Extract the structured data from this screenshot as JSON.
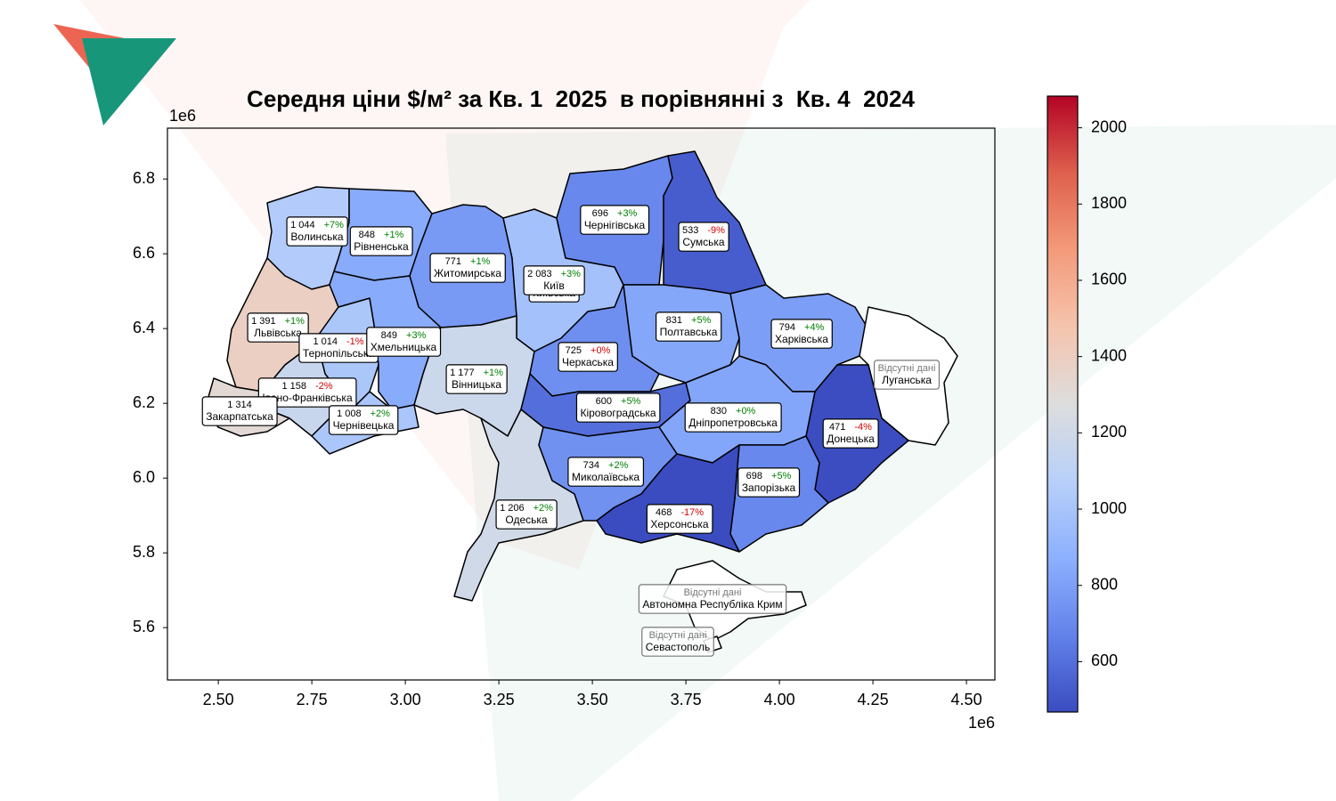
{
  "chart_data": {
    "type": "choropleth",
    "title": "Середня ціни $/м² за Кв. 1  2025  в порівнянні з  Кв. 4  2024",
    "colormap": "coolwarm",
    "clim": [
      468,
      2083
    ],
    "colorbar_ticks": [
      600,
      800,
      1000,
      1200,
      1400,
      1600,
      1800,
      2000
    ],
    "xlim": [
      2.364,
      4.576
    ],
    "ylim": [
      5.46,
      6.936
    ],
    "xticks": [
      {
        "value": 2.5,
        "label": "2.50"
      },
      {
        "value": 2.75,
        "label": "2.75"
      },
      {
        "value": 3,
        "label": "3.00"
      },
      {
        "value": 3.25,
        "label": "3.25"
      },
      {
        "value": 3.5,
        "label": "3.50"
      },
      {
        "value": 3.75,
        "label": "3.75"
      },
      {
        "value": 4,
        "label": "4.00"
      },
      {
        "value": 4.25,
        "label": "4.25"
      },
      {
        "value": 4.5,
        "label": "4.50"
      }
    ],
    "yticks": [
      5.6,
      5.8,
      {
        "value": 6,
        "label": "6.0"
      },
      6.2,
      6.4,
      6.6,
      6.8
    ],
    "x_offset_label": "1e6",
    "y_offset_label": "1e6",
    "no_data_label": "Відсутні дані",
    "regions": [
      "Волинська",
      "Рівненська",
      "Житомирська",
      "Київська",
      "Київ",
      "Чернігівська",
      "Сумська",
      "Львівська",
      "Тернопільська",
      "Хмельницька",
      "Вінницька",
      "Івано-Франківська",
      "Закарпатська",
      "Чернівецька",
      "Одеська",
      "Черкаська",
      "Кіровоградська",
      "Полтавська",
      "Харківська",
      "Луганська",
      "Донецька",
      "Дніпропетровська",
      "Запорізька",
      "Миколаївська",
      "Херсонська",
      "Автономна Республіка Крим",
      "Севастополь"
    ],
    "values": [
      1044,
      848,
      771,
      980,
      2083,
      696,
      533,
      1391,
      1014,
      849,
      1177,
      1158,
      1314,
      1008,
      1206,
      725,
      600,
      831,
      794,
      null,
      471,
      830,
      698,
      734,
      468,
      null,
      null
    ],
    "value_labels": [
      "1 044",
      "848",
      "771",
      null,
      "2 083",
      "696",
      "533",
      "1 391",
      "1 014",
      "849",
      "1 177",
      "1 158",
      "1 314",
      "1 008",
      "1 206",
      "725",
      "600",
      "831",
      "794",
      null,
      "471",
      "830",
      "698",
      "734",
      "468",
      null,
      null
    ],
    "changes": [
      7,
      1,
      1,
      null,
      3,
      3,
      -9,
      1,
      -1,
      3,
      1,
      -2,
      null,
      2,
      2,
      0,
      5,
      5,
      4,
      null,
      -4,
      0,
      5,
      2,
      -17,
      null,
      null
    ],
    "change_labels": [
      "+7%",
      "+1%",
      "+1%",
      null,
      "+3%",
      "+3%",
      "-9%",
      "+1%",
      "-1%",
      "+3%",
      "+1%",
      "-2%",
      null,
      "+2%",
      "+2%",
      "+0%",
      "+5%",
      "+5%",
      "+4%",
      null,
      "-4%",
      "+0%",
      "+5%",
      "+2%",
      "-17%",
      null,
      null
    ],
    "change_colors": [
      "#008000",
      "#008000",
      "#008000",
      null,
      "#008000",
      "#008000",
      "#d00000",
      "#008000",
      "#d00000",
      "#008000",
      "#008000",
      "#d00000",
      null,
      "#008000",
      "#008000",
      "#d00000",
      "#008000",
      "#008000",
      "#008000",
      null,
      "#d00000",
      "#008000",
      "#008000",
      "#008000",
      "#d00000",
      null,
      null
    ]
  }
}
